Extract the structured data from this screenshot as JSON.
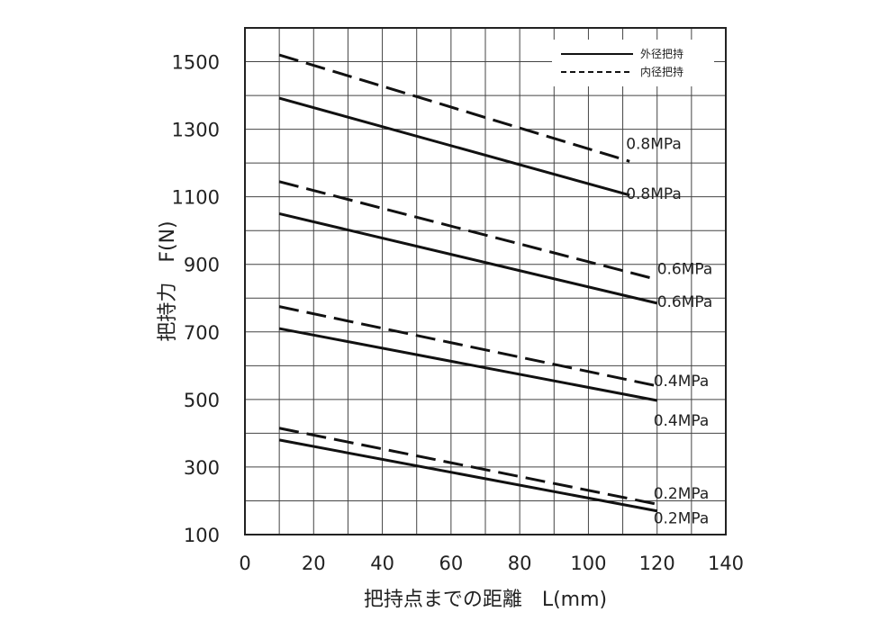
{
  "chart_data": {
    "type": "line",
    "xlabel": "把持点までの距離　L(mm)",
    "ylabel": "把持力　F(N)",
    "xlim": [
      0,
      140
    ],
    "ylim": [
      100,
      1600
    ],
    "x_ticks": [
      0,
      20,
      40,
      60,
      80,
      100,
      120,
      140
    ],
    "y_ticks": [
      100,
      300,
      500,
      700,
      900,
      1100,
      1300,
      1500
    ],
    "x_grid_step": 10,
    "y_grid_step": 100,
    "grid": true,
    "legend_position": "top-right",
    "legend": [
      {
        "label": "外径把持",
        "style": "solid"
      },
      {
        "label": "内径把持",
        "style": "dashed"
      }
    ],
    "series": [
      {
        "label": "0.8MPa",
        "style": "dashed",
        "x": [
          10,
          112
        ],
        "y": [
          1520,
          1205
        ]
      },
      {
        "label": "0.8MPa",
        "style": "solid",
        "x": [
          10,
          112
        ],
        "y": [
          1392,
          1105
        ]
      },
      {
        "label": "0.6MPa",
        "style": "dashed",
        "x": [
          10,
          120
        ],
        "y": [
          1145,
          855
        ]
      },
      {
        "label": "0.6MPa",
        "style": "solid",
        "x": [
          10,
          120
        ],
        "y": [
          1050,
          785
        ]
      },
      {
        "label": "0.4MPa",
        "style": "dashed",
        "x": [
          10,
          120
        ],
        "y": [
          775,
          540
        ]
      },
      {
        "label": "0.4MPa",
        "style": "solid",
        "x": [
          10,
          120
        ],
        "y": [
          710,
          497
        ]
      },
      {
        "label": "0.2MPa",
        "style": "dashed",
        "x": [
          10,
          120
        ],
        "y": [
          415,
          190
        ]
      },
      {
        "label": "0.2MPa",
        "style": "solid",
        "x": [
          10,
          120
        ],
        "y": [
          380,
          170
        ]
      }
    ]
  }
}
